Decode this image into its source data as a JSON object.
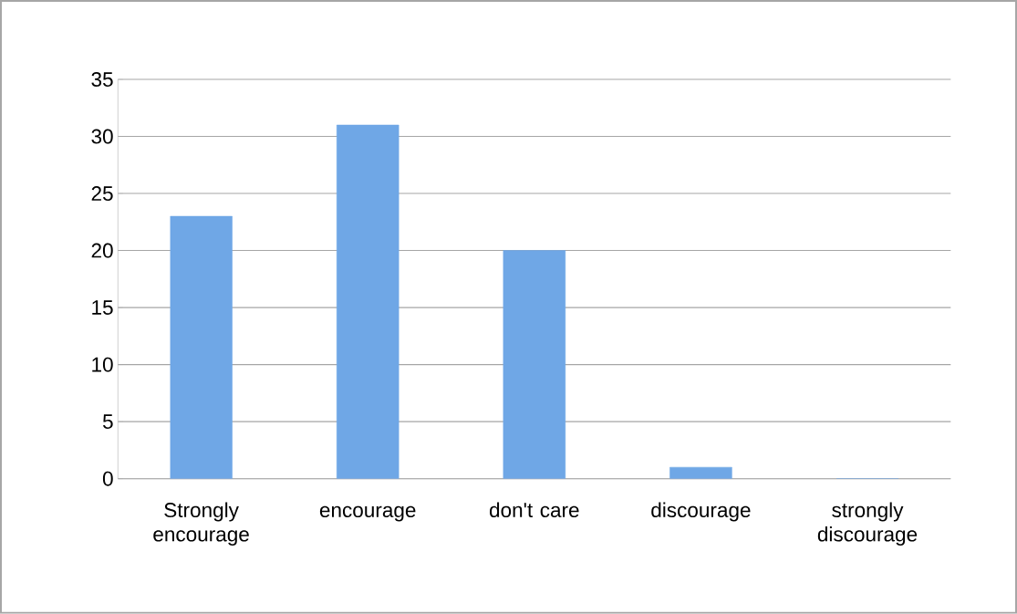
{
  "chart_data": {
    "type": "bar",
    "categories": [
      "Strongly encourage",
      "encourage",
      "don't care",
      "discourage",
      "strongly discourage"
    ],
    "values": [
      23,
      31,
      20,
      1,
      0
    ],
    "color": "#6fa7e6",
    "ylim": [
      0,
      35
    ],
    "yticks": [
      0,
      5,
      10,
      15,
      20,
      25,
      30,
      35
    ],
    "grid": "y"
  }
}
